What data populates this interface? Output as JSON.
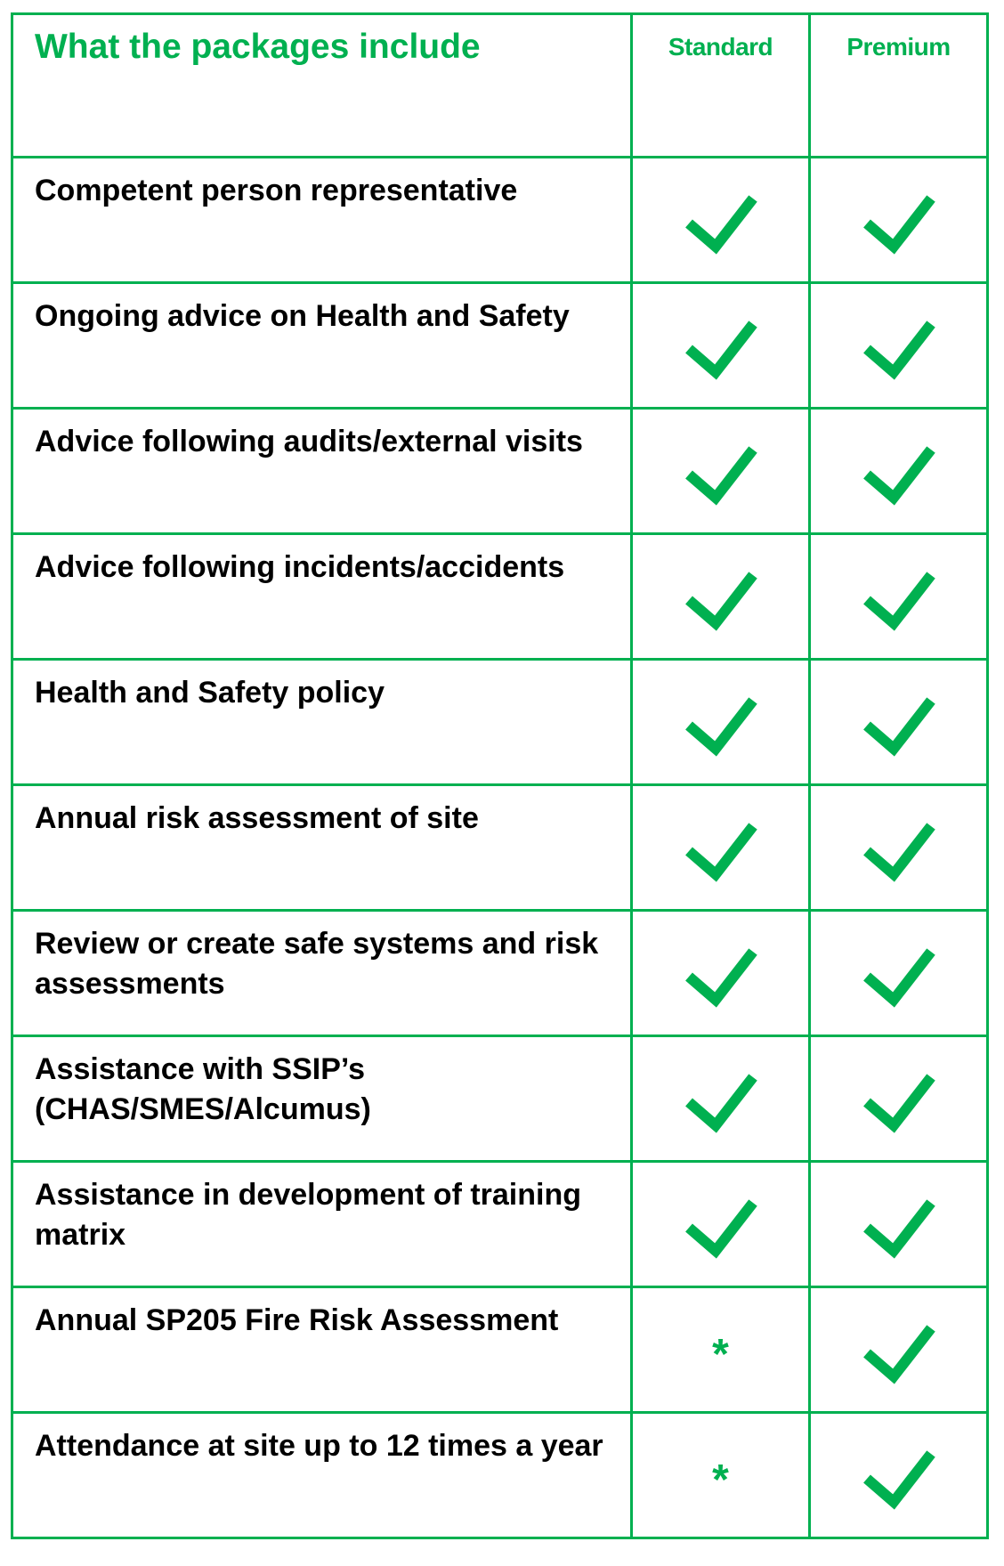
{
  "header": {
    "title": "What the packages include",
    "standard": "Standard",
    "premium": "Premium"
  },
  "colors": {
    "accent": "#00b050"
  },
  "rows": [
    {
      "feature": "Competent person representative",
      "standard": "check",
      "premium": "check"
    },
    {
      "feature": "Ongoing advice on Health and Safety",
      "standard": "check",
      "premium": "check"
    },
    {
      "feature": "Advice following audits/external visits",
      "standard": "check",
      "premium": "check"
    },
    {
      "feature": "Advice following incidents/accidents",
      "standard": "check",
      "premium": "check"
    },
    {
      "feature": "Health and Safety policy",
      "standard": "check",
      "premium": "check"
    },
    {
      "feature": "Annual risk assessment of site",
      "standard": "check",
      "premium": "check"
    },
    {
      "feature": "Review or create safe systems and risk assessments",
      "standard": "check",
      "premium": "check"
    },
    {
      "feature": "Assistance with SSIP’s (CHAS/SMES/Alcumus)",
      "standard": "check",
      "premium": "check"
    },
    {
      "feature": "Assistance in development of training matrix",
      "standard": "check",
      "premium": "check"
    },
    {
      "feature": "Annual SP205 Fire Risk Assessment",
      "standard": "*",
      "premium": "check"
    },
    {
      "feature": "Attendance at site up to 12 times a year",
      "standard": "*",
      "premium": "check"
    }
  ]
}
